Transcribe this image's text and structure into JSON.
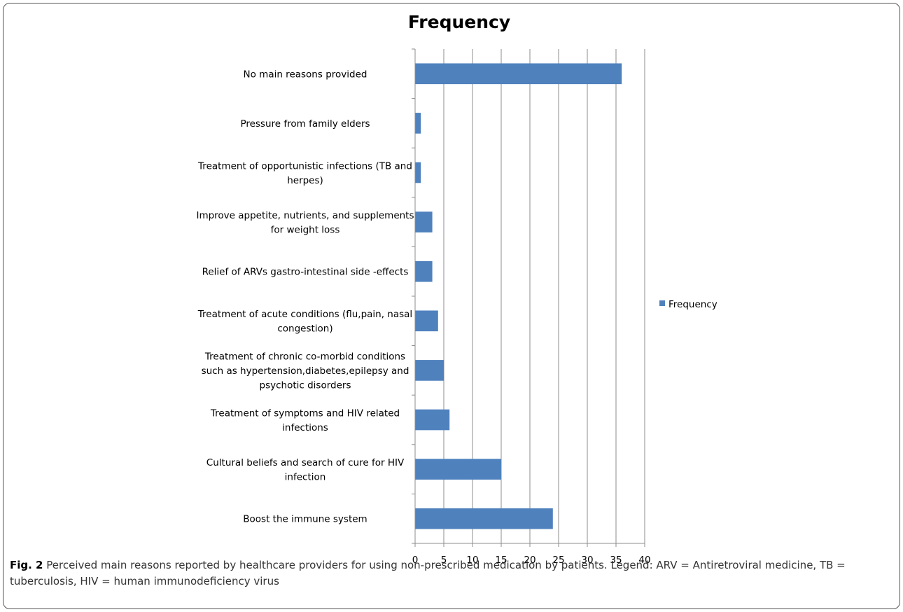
{
  "chart_data": {
    "type": "bar",
    "orientation": "horizontal",
    "title": "Frequency",
    "categories": [
      [
        "No main reasons provided"
      ],
      [
        "Pressure from family elders"
      ],
      [
        "Treatment of opportunistic infections (TB and",
        "herpes)"
      ],
      [
        "Improve appetite, nutrients, and supplements",
        "for weight loss"
      ],
      [
        "Relief of ARVs gastro-intestinal side -effects"
      ],
      [
        "Treatment of acute conditions (flu,pain, nasal",
        "congestion)"
      ],
      [
        "Treatment of chronic co-morbid conditions",
        "such as      hypertension,diabetes,epilepsy and",
        "psychotic disorders"
      ],
      [
        "Treatment of symptoms  and  HIV related",
        "infections"
      ],
      [
        "Cultural beliefs and search of cure for HIV",
        "infection"
      ],
      [
        "Boost the immune system"
      ]
    ],
    "series": [
      {
        "name": "Frequency",
        "values": [
          36,
          1,
          1,
          3,
          3,
          4,
          5,
          6,
          15,
          24
        ]
      }
    ],
    "xlim": [
      0,
      40
    ],
    "xticks": [
      0,
      5,
      10,
      15,
      20,
      25,
      30,
      35,
      40
    ],
    "grid": "vertical",
    "legend": "right",
    "bar_color": "#4f81bd"
  },
  "caption": {
    "label": "Fig. 2",
    "text": "Perceived main reasons reported by healthcare providers for using non-prescribed medication by patients. Legend: ARV = Antiretroviral medicine, TB = tuberculosis, HIV = human immunodeficiency virus"
  }
}
